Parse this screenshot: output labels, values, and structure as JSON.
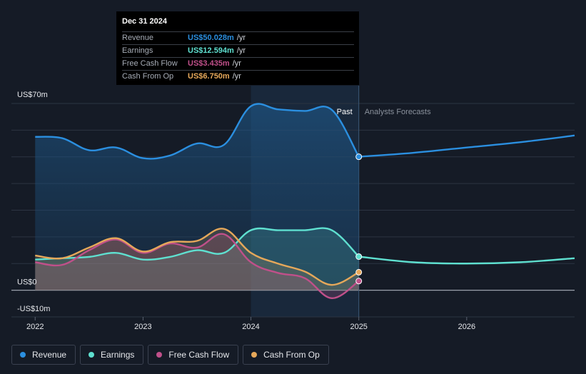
{
  "chart_data": {
    "type": "area",
    "title": "",
    "xlabel": "",
    "ylabel": "",
    "ylim": [
      -10,
      70
    ],
    "ytick_labels": {
      "top": "US$70m",
      "zero": "US$0",
      "bottom": "-US$10m"
    },
    "x_ticks": [
      {
        "value": 2022.0,
        "label": "2022"
      },
      {
        "value": 2023.0,
        "label": "2023"
      },
      {
        "value": 2024.0,
        "label": "2024"
      },
      {
        "value": 2025.0,
        "label": "2025"
      },
      {
        "value": 2026.0,
        "label": "2026"
      }
    ],
    "xlim": [
      2021.78,
      2027.0
    ],
    "past_end": 2025.0,
    "highlight_start": 2024.0,
    "past_label": "Past",
    "forecast_label": "Analysts Forecasts",
    "series": [
      {
        "name": "Revenue",
        "color": "#2b8fe0",
        "past": [
          [
            2022.0,
            57.5
          ],
          [
            2022.25,
            57.0
          ],
          [
            2022.5,
            52.5
          ],
          [
            2022.75,
            53.5
          ],
          [
            2023.0,
            49.5
          ],
          [
            2023.25,
            50.5
          ],
          [
            2023.5,
            55.0
          ],
          [
            2023.75,
            54.5
          ],
          [
            2024.0,
            69.0
          ],
          [
            2024.25,
            67.8
          ],
          [
            2024.5,
            67.2
          ],
          [
            2024.75,
            67.6
          ],
          [
            2025.0,
            50.028
          ]
        ],
        "forecast": [
          [
            2025.0,
            50.028
          ],
          [
            2025.5,
            51.5
          ],
          [
            2026.0,
            53.5
          ],
          [
            2026.5,
            55.5
          ],
          [
            2027.0,
            58.0
          ]
        ]
      },
      {
        "name": "Earnings",
        "color": "#5fe0d0",
        "past": [
          [
            2022.0,
            11.5
          ],
          [
            2022.25,
            12.0
          ],
          [
            2022.5,
            12.5
          ],
          [
            2022.75,
            14.0
          ],
          [
            2023.0,
            11.5
          ],
          [
            2023.25,
            12.5
          ],
          [
            2023.5,
            15.0
          ],
          [
            2023.75,
            14.0
          ],
          [
            2024.0,
            22.5
          ],
          [
            2024.25,
            22.5
          ],
          [
            2024.5,
            22.5
          ],
          [
            2024.75,
            22.5
          ],
          [
            2025.0,
            12.594
          ]
        ],
        "forecast": [
          [
            2025.0,
            12.594
          ],
          [
            2025.5,
            10.5
          ],
          [
            2026.0,
            10.0
          ],
          [
            2026.5,
            10.5
          ],
          [
            2027.0,
            12.0
          ]
        ]
      },
      {
        "name": "Free Cash Flow",
        "color": "#c0508a",
        "past": [
          [
            2022.0,
            10.5
          ],
          [
            2022.25,
            9.5
          ],
          [
            2022.5,
            15.0
          ],
          [
            2022.75,
            19.0
          ],
          [
            2023.0,
            14.0
          ],
          [
            2023.25,
            17.5
          ],
          [
            2023.5,
            16.0
          ],
          [
            2023.75,
            21.0
          ],
          [
            2024.0,
            10.5
          ],
          [
            2024.25,
            6.5
          ],
          [
            2024.5,
            4.5
          ],
          [
            2024.75,
            -3.0
          ],
          [
            2025.0,
            3.435
          ]
        ],
        "forecast": []
      },
      {
        "name": "Cash From Op",
        "color": "#e6a85a",
        "past": [
          [
            2022.0,
            13.0
          ],
          [
            2022.25,
            12.0
          ],
          [
            2022.5,
            16.0
          ],
          [
            2022.75,
            19.5
          ],
          [
            2023.0,
            14.5
          ],
          [
            2023.25,
            18.0
          ],
          [
            2023.5,
            18.5
          ],
          [
            2023.75,
            23.0
          ],
          [
            2024.0,
            14.0
          ],
          [
            2024.25,
            10.0
          ],
          [
            2024.5,
            7.0
          ],
          [
            2024.75,
            2.0
          ],
          [
            2025.0,
            6.75
          ]
        ],
        "forecast": []
      }
    ]
  },
  "tooltip": {
    "date": "Dec 31 2024",
    "rows": [
      {
        "label": "Revenue",
        "value": "US$50.028m",
        "unit": "/yr",
        "color": "#2b8fe0"
      },
      {
        "label": "Earnings",
        "value": "US$12.594m",
        "unit": "/yr",
        "color": "#5fe0d0"
      },
      {
        "label": "Free Cash Flow",
        "value": "US$3.435m",
        "unit": "/yr",
        "color": "#c0508a"
      },
      {
        "label": "Cash From Op",
        "value": "US$6.750m",
        "unit": "/yr",
        "color": "#e6a85a"
      }
    ]
  },
  "legend": [
    {
      "label": "Revenue",
      "color": "#2b8fe0"
    },
    {
      "label": "Earnings",
      "color": "#5fe0d0"
    },
    {
      "label": "Free Cash Flow",
      "color": "#c0508a"
    },
    {
      "label": "Cash From Op",
      "color": "#e6a85a"
    }
  ]
}
